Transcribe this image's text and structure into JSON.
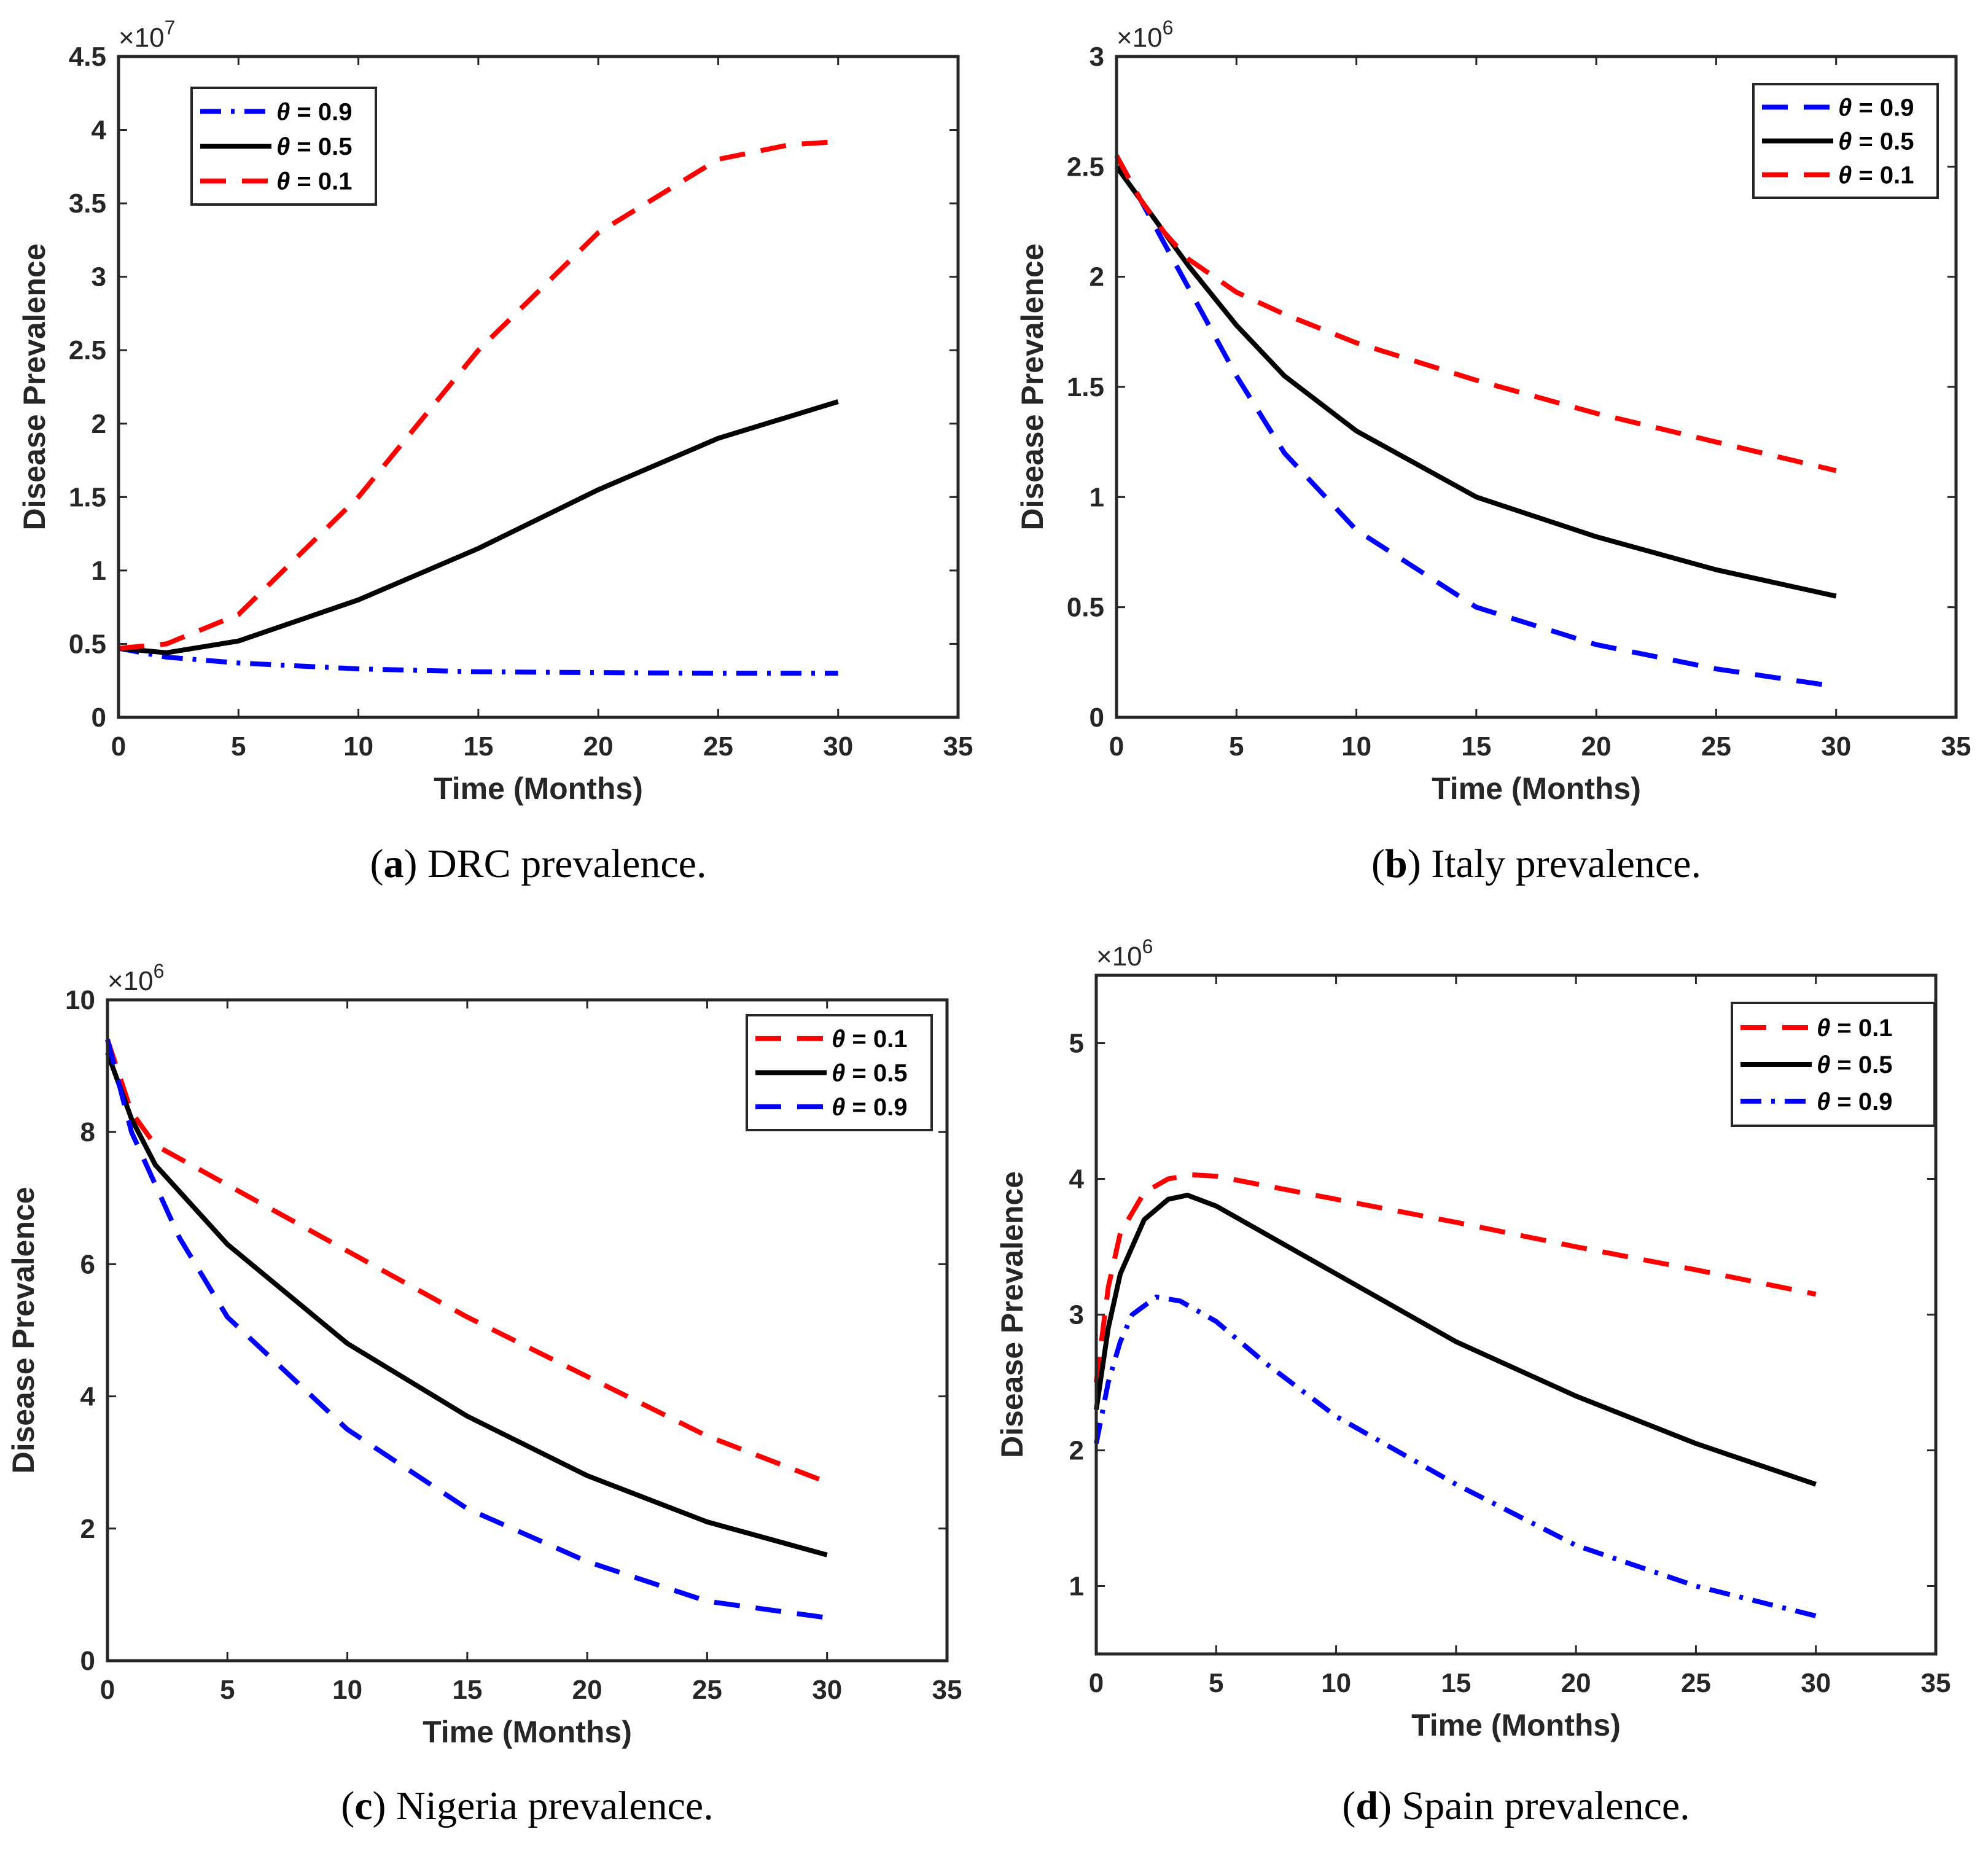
{
  "chart_data": [
    {
      "type": "line",
      "caption_letter": "a",
      "caption_text": "DRC prevalence.",
      "xlabel": "Time (Months)",
      "ylabel": "Disease Prevalence",
      "xlim": [
        0,
        35
      ],
      "ylim": [
        0,
        4.5
      ],
      "multiplier": "10",
      "multiplier_exp": "7",
      "xticks": [
        "0",
        "5",
        "10",
        "15",
        "20",
        "25",
        "30",
        "35"
      ],
      "yticks": [
        "0",
        "0.5",
        "1",
        "1.5",
        "2",
        "2.5",
        "3",
        "3.5",
        "4",
        "4.5"
      ],
      "legend_location": "top-left",
      "series": [
        {
          "name": "θ = 0.9",
          "theta": "θ",
          "value_text": " = 0.9",
          "color": "#0000ff",
          "style": "dashdot",
          "x": [
            0,
            2,
            5,
            10,
            15,
            20,
            25,
            30
          ],
          "y": [
            0.47,
            0.41,
            0.37,
            0.33,
            0.31,
            0.305,
            0.3,
            0.3
          ]
        },
        {
          "name": "θ = 0.5",
          "theta": "θ",
          "value_text": " = 0.5",
          "color": "#000000",
          "style": "solid",
          "x": [
            0,
            2,
            5,
            10,
            15,
            20,
            25,
            30
          ],
          "y": [
            0.47,
            0.44,
            0.52,
            0.8,
            1.15,
            1.55,
            1.9,
            2.15
          ]
        },
        {
          "name": "θ = 0.1",
          "theta": "θ",
          "value_text": " = 0.1",
          "color": "#ff0000",
          "style": "dashed",
          "x": [
            0,
            2,
            5,
            10,
            15,
            20,
            25,
            28,
            30
          ],
          "y": [
            0.47,
            0.5,
            0.7,
            1.5,
            2.5,
            3.3,
            3.8,
            3.9,
            3.92
          ]
        }
      ]
    },
    {
      "type": "line",
      "caption_letter": "b",
      "caption_text": "Italy prevalence.",
      "xlabel": "Time (Months)",
      "ylabel": "Disease Prevalence",
      "xlim": [
        0,
        35
      ],
      "ylim": [
        0,
        3
      ],
      "multiplier": "10",
      "multiplier_exp": "6",
      "xticks": [
        "0",
        "5",
        "10",
        "15",
        "20",
        "25",
        "30",
        "35"
      ],
      "yticks": [
        "0",
        "0.5",
        "1",
        "1.5",
        "2",
        "2.5",
        "3"
      ],
      "legend_location": "top-right",
      "series": [
        {
          "name": "θ = 0.9",
          "theta": "θ",
          "value_text": " = 0.9",
          "color": "#0000ff",
          "style": "dashed",
          "x": [
            0,
            1,
            2,
            3,
            5,
            7,
            10,
            15,
            20,
            25,
            30
          ],
          "y": [
            2.55,
            2.35,
            2.15,
            1.95,
            1.55,
            1.2,
            0.85,
            0.5,
            0.33,
            0.22,
            0.14
          ]
        },
        {
          "name": "θ = 0.5",
          "theta": "θ",
          "value_text": " = 0.5",
          "color": "#000000",
          "style": "solid",
          "x": [
            0,
            1,
            2,
            3,
            5,
            7,
            10,
            15,
            20,
            25,
            30
          ],
          "y": [
            2.5,
            2.35,
            2.2,
            2.05,
            1.78,
            1.55,
            1.3,
            1.0,
            0.82,
            0.67,
            0.55
          ]
        },
        {
          "name": "θ = 0.1",
          "theta": "θ",
          "value_text": " = 0.1",
          "color": "#ff0000",
          "style": "dashed",
          "x": [
            0,
            1,
            2,
            3,
            5,
            7,
            10,
            15,
            20,
            25,
            30
          ],
          "y": [
            2.55,
            2.35,
            2.2,
            2.08,
            1.93,
            1.83,
            1.7,
            1.53,
            1.38,
            1.25,
            1.12
          ]
        }
      ]
    },
    {
      "type": "line",
      "caption_letter": "c",
      "caption_text": "Nigeria prevalence.",
      "xlabel": "Time (Months)",
      "ylabel": "Disease Prevalence",
      "xlim": [
        0,
        35
      ],
      "ylim": [
        0,
        10
      ],
      "multiplier": "10",
      "multiplier_exp": "6",
      "xticks": [
        "0",
        "5",
        "10",
        "15",
        "20",
        "25",
        "30",
        "35"
      ],
      "yticks": [
        "0",
        "2",
        "4",
        "6",
        "8",
        "10"
      ],
      "legend_location": "top-right",
      "series": [
        {
          "name": "θ = 0.1",
          "theta": "θ",
          "value_text": " = 0.1",
          "color": "#ff0000",
          "style": "dashed",
          "x": [
            0,
            1,
            2,
            3,
            5,
            10,
            15,
            20,
            25,
            30
          ],
          "y": [
            9.4,
            8.3,
            7.8,
            7.6,
            7.2,
            6.2,
            5.2,
            4.3,
            3.4,
            2.7
          ]
        },
        {
          "name": "θ = 0.5",
          "theta": "θ",
          "value_text": " = 0.5",
          "color": "#000000",
          "style": "solid",
          "x": [
            0,
            1,
            2,
            3,
            5,
            10,
            15,
            20,
            25,
            30
          ],
          "y": [
            9.2,
            8.2,
            7.5,
            7.1,
            6.3,
            4.8,
            3.7,
            2.8,
            2.1,
            1.6
          ]
        },
        {
          "name": "θ = 0.9",
          "theta": "θ",
          "value_text": " = 0.9",
          "color": "#0000ff",
          "style": "dashed",
          "x": [
            0,
            1,
            2,
            3,
            5,
            10,
            15,
            20,
            25,
            30
          ],
          "y": [
            9.4,
            8.0,
            7.2,
            6.4,
            5.2,
            3.5,
            2.3,
            1.5,
            0.9,
            0.65
          ]
        }
      ]
    },
    {
      "type": "line",
      "caption_letter": "d",
      "caption_text": "Spain prevalence.",
      "xlabel": "Time (Months)",
      "ylabel": "Disease Prevalence",
      "xlim": [
        0,
        35
      ],
      "ylim": [
        0.5,
        5.5
      ],
      "multiplier": "10",
      "multiplier_exp": "6",
      "xticks": [
        "0",
        "5",
        "10",
        "15",
        "20",
        "25",
        "30",
        "35"
      ],
      "yticks": [
        "1",
        "2",
        "3",
        "4",
        "5"
      ],
      "legend_location": "top-right",
      "series": [
        {
          "name": "θ = 0.1",
          "theta": "θ",
          "value_text": " = 0.1",
          "color": "#ff0000",
          "style": "dashed",
          "x": [
            0,
            0.5,
            1,
            2,
            3,
            4,
            5,
            10,
            15,
            20,
            25,
            30
          ],
          "y": [
            2.5,
            3.2,
            3.6,
            3.9,
            4.0,
            4.03,
            4.02,
            3.85,
            3.68,
            3.5,
            3.33,
            3.15
          ]
        },
        {
          "name": "θ = 0.5",
          "theta": "θ",
          "value_text": " = 0.5",
          "color": "#000000",
          "style": "solid",
          "x": [
            0,
            0.5,
            1,
            2,
            3,
            3.8,
            5,
            7,
            10,
            15,
            20,
            25,
            30
          ],
          "y": [
            2.3,
            2.9,
            3.3,
            3.7,
            3.85,
            3.88,
            3.8,
            3.6,
            3.3,
            2.8,
            2.4,
            2.05,
            1.75
          ]
        },
        {
          "name": "θ = 0.9",
          "theta": "θ",
          "value_text": " = 0.9",
          "color": "#0000ff",
          "style": "dashdot",
          "x": [
            0,
            0.5,
            1,
            1.5,
            2.5,
            3.5,
            5,
            7,
            10,
            15,
            20,
            25,
            30
          ],
          "y": [
            2.05,
            2.5,
            2.8,
            3.0,
            3.13,
            3.1,
            2.95,
            2.65,
            2.25,
            1.75,
            1.3,
            1.0,
            0.78
          ]
        }
      ]
    }
  ]
}
